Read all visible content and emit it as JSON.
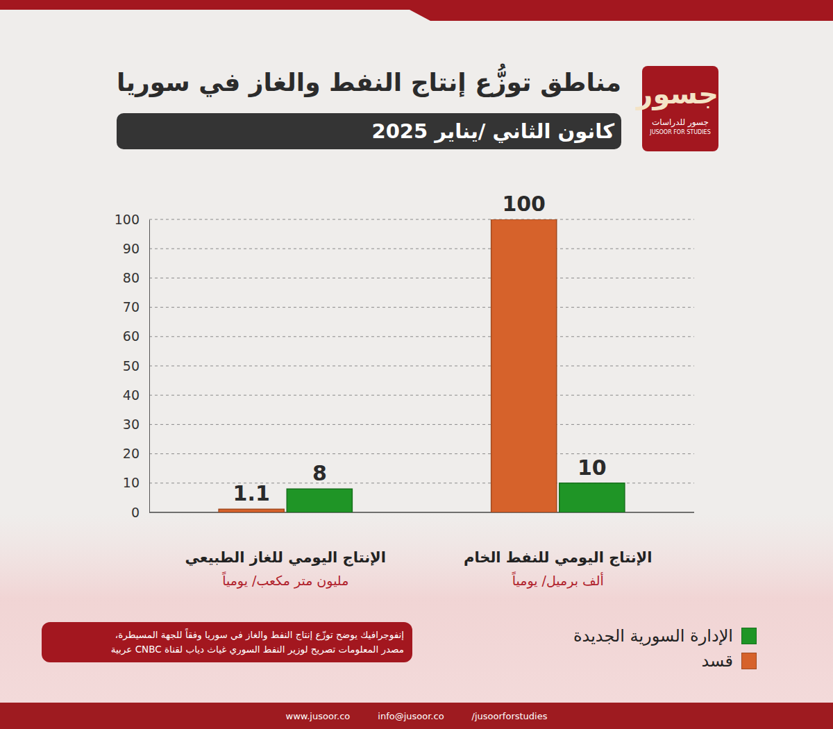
{
  "chart_data": {
    "type": "bar",
    "title": "مناطق توزُّع إنتاج النفط والغاز في سوريا",
    "subtitle": "كانون الثاني /يناير 2025",
    "categories": [
      "الإنتاج اليومي للغاز الطبيعي",
      "الإنتاج اليومي للنفط الخام"
    ],
    "units": [
      "مليون متر مكعب/ يومياً",
      "ألف برميل/ يومياً"
    ],
    "series": [
      {
        "name": "الإدارة السورية الجديدة",
        "color": "#1f9526",
        "values": [
          8,
          10
        ]
      },
      {
        "name": "قسد",
        "color": "#d6622b",
        "values": [
          1.1,
          100
        ]
      }
    ],
    "ylim": [
      0,
      100
    ],
    "yticks": [
      0,
      10,
      20,
      30,
      40,
      50,
      60,
      70,
      80,
      90,
      100
    ],
    "grid": true,
    "data_labels": true,
    "legend": "lower right"
  },
  "logo": {
    "name": "جسور",
    "subtitle": "جسور للدراسات",
    "english": "JUSOOR FOR STUDIES"
  },
  "note": [
    "إنفوجرافيك يوضح توزّع إنتاج النفط والغاز في سوريا وفقاً للجهة المسيطرة،",
    "مصدر المعلومات تصريح لوزير النفط السوري غياث دياب لقناة CNBC عربية"
  ],
  "footer": {
    "website": "www.jusoor.co",
    "email": "info@jusoor.co",
    "social": "/jusoorforstudies"
  }
}
